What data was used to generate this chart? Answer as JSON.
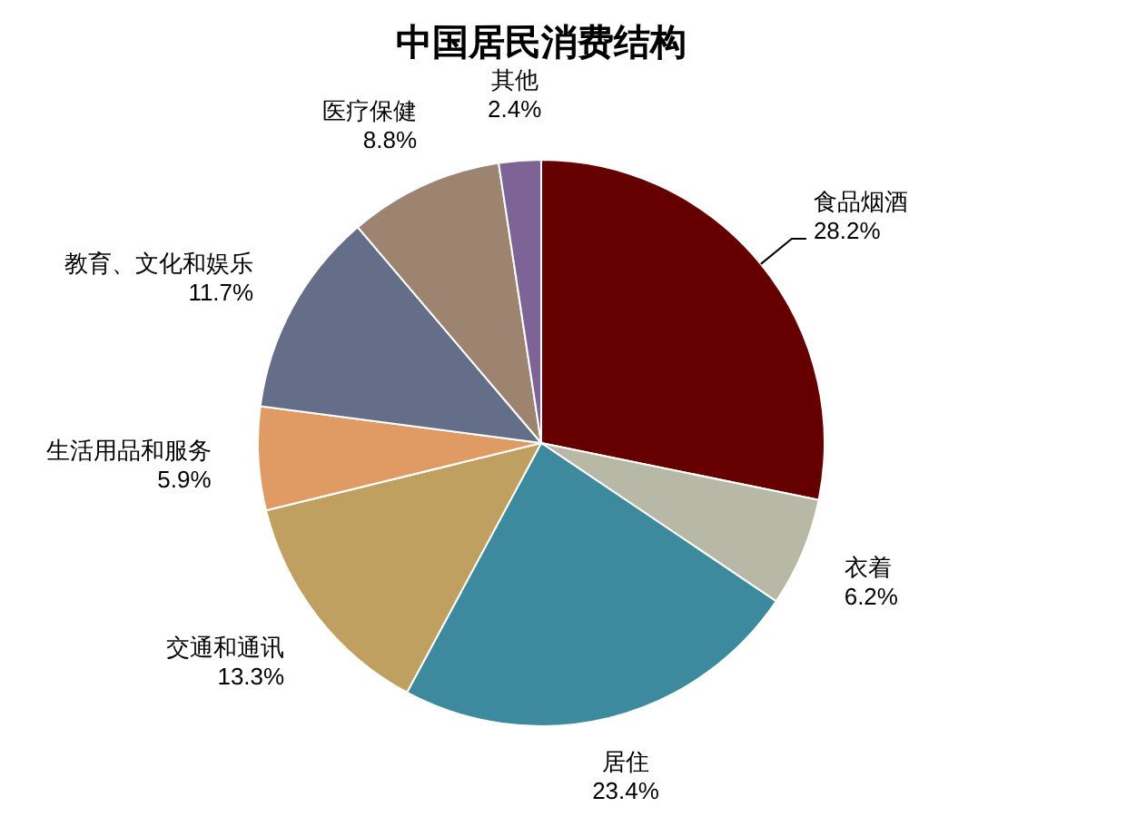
{
  "chart_data": {
    "type": "pie",
    "title": "中国居民消费结构",
    "categories": [
      "食品烟酒",
      "衣着",
      "居住",
      "交通和通讯",
      "生活用品和服务",
      "教育、文化和娱乐",
      "医疗保健",
      "其他"
    ],
    "values": [
      28.2,
      6.2,
      23.4,
      13.3,
      5.9,
      11.7,
      8.8,
      2.4
    ],
    "colors": [
      "#660000",
      "#b8b8a6",
      "#3d8a9e",
      "#bfa060",
      "#e09a64",
      "#646e88",
      "#9c8470",
      "#7e6496"
    ],
    "value_labels": [
      "28.2%",
      "6.2%",
      "23.4%",
      "13.3%",
      "5.9%",
      "11.7%",
      "8.8%",
      "2.4%"
    ]
  }
}
